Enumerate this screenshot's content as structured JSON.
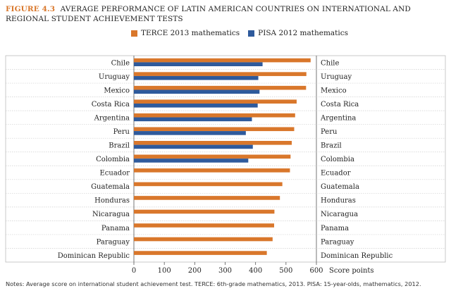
{
  "figure": {
    "label": "FIGURE 4.3",
    "title": "AVERAGE PERFORMANCE OF LATIN AMERICAN COUNTRIES ON INTERNATIONAL AND REGIONAL STUDENT ACHIEVEMENT TESTS"
  },
  "notes": "Notes: Average score on international student achievement test. TERCE: 6th-grade mathematics, 2013. PISA: 15-year-olds, mathematics, 2012.",
  "colors": {
    "terce": "#d9772b",
    "pisa": "#2e5a9c",
    "grid": "#cfcfcf",
    "axis": "#555555"
  },
  "chart_data": {
    "type": "bar",
    "orientation": "horizontal",
    "title": "",
    "xlabel": "Score points",
    "ylabel": "",
    "xlim": [
      0,
      600
    ],
    "xticks": [
      0,
      100,
      200,
      300,
      400,
      500,
      600
    ],
    "legend": "top",
    "categories": [
      "Chile",
      "Uruguay",
      "Mexico",
      "Costa Rica",
      "Argentina",
      "Peru",
      "Brazil",
      "Colombia",
      "Ecuador",
      "Guatemala",
      "Honduras",
      "Nicaragua",
      "Panama",
      "Paraguay",
      "Dominican Republic"
    ],
    "series": [
      {
        "name": "TERCE 2013 mathematics",
        "values": [
          581,
          567,
          566,
          535,
          530,
          527,
          519,
          515,
          513,
          488,
          480,
          462,
          461,
          456,
          437
        ]
      },
      {
        "name": "PISA 2012 mathematics",
        "values": [
          423,
          409,
          413,
          407,
          388,
          368,
          391,
          376,
          null,
          null,
          null,
          null,
          null,
          null,
          null
        ]
      }
    ]
  }
}
